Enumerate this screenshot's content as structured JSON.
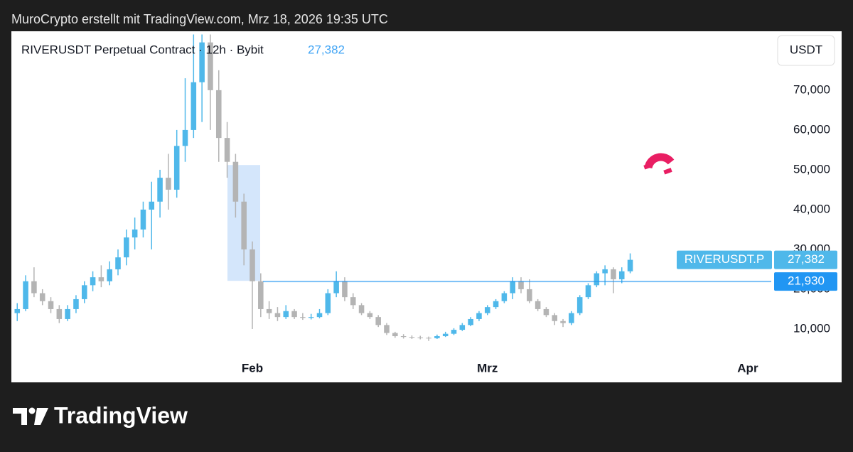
{
  "header": {
    "caption": "MuroCrypto erstellt mit TradingView.com, Mrz 18, 2026 19:35 UTC",
    "brand": "TradingView"
  },
  "chart_data": {
    "type": "candlestick",
    "title": "RIVERUSDT Perpetual Contract · 12h · Bybit",
    "currency": "USDT",
    "symbol_label": "RIVERUSDT.P",
    "last_price": {
      "value": 27382,
      "label": "27,382"
    },
    "horizontal_line": {
      "value": 21930,
      "label": "21,930",
      "color": "#2196f3"
    },
    "highlight_box": {
      "ylim": [
        22100,
        51200
      ],
      "color": "#cfe3fb"
    },
    "up_color": "#4fb8ea",
    "down_color": "#b4b4b4",
    "xlim": [
      -0.7,
      89.8
    ],
    "xticks": [
      {
        "value": 28,
        "label": "Feb"
      },
      {
        "value": 56,
        "label": "Mrz"
      },
      {
        "value": 87,
        "label": "Apr"
      }
    ],
    "ylim": [
      -3400,
      84800
    ],
    "yticks": [
      {
        "value": 10000,
        "label": "10,000"
      },
      {
        "value": 20000,
        "label": "20,000"
      },
      {
        "value": 30000,
        "label": "30,000"
      },
      {
        "value": 40000,
        "label": "40,000"
      },
      {
        "value": 50000,
        "label": "50,000"
      },
      {
        "value": 60000,
        "label": "60,000"
      },
      {
        "value": 70000,
        "label": "70,000"
      }
    ],
    "open": [
      14000,
      15000,
      22000,
      19000,
      17000,
      15000,
      12500,
      15000,
      17500,
      21000,
      23000,
      22000,
      25000,
      28000,
      33000,
      35000,
      40000,
      42000,
      48000,
      45000,
      56000,
      60000,
      72000,
      82000,
      70000,
      58000,
      52000,
      42000,
      30000,
      22000,
      15000,
      14000,
      13000,
      14500,
      13000,
      12800,
      13000,
      14000,
      19000,
      22000,
      18000,
      16000,
      14000,
      13000,
      11000,
      9000,
      8200,
      8000,
      7900,
      7800,
      7700,
      8200,
      8800,
      9800,
      11000,
      12500,
      14000,
      15500,
      17000,
      19000,
      22000,
      20000,
      17000,
      15000,
      13500,
      12000,
      11500,
      14000,
      18000,
      21000,
      24000,
      25000,
      22500,
      24500
    ],
    "high": [
      16500,
      23500,
      25500,
      20000,
      18000,
      16000,
      16000,
      18500,
      22000,
      24500,
      26000,
      27000,
      30000,
      35000,
      38000,
      42000,
      47000,
      50000,
      54000,
      60000,
      73000,
      84000,
      84000,
      84000,
      75000,
      62000,
      54000,
      44000,
      32000,
      24000,
      17000,
      15500,
      16000,
      15000,
      14000,
      13800,
      15000,
      20000,
      24500,
      23000,
      19000,
      16500,
      14500,
      13500,
      11500,
      9300,
      8700,
      8400,
      8300,
      8100,
      8600,
      9300,
      10200,
      11500,
      13000,
      14500,
      16000,
      17500,
      19500,
      23000,
      23000,
      22500,
      17500,
      15500,
      14000,
      12500,
      14500,
      18500,
      21500,
      24500,
      26000,
      25500,
      25500,
      29000
    ],
    "low": [
      12000,
      14500,
      18000,
      16000,
      14000,
      11500,
      12000,
      14000,
      16500,
      19500,
      20500,
      21000,
      23500,
      26000,
      30000,
      33000,
      30000,
      38000,
      40000,
      43000,
      52000,
      58000,
      62000,
      60000,
      52000,
      48000,
      38000,
      26000,
      10000,
      13000,
      12500,
      12000,
      12500,
      12500,
      12300,
      12400,
      12700,
      13500,
      18000,
      17000,
      15000,
      13500,
      12500,
      10500,
      8500,
      7800,
      7600,
      7500,
      7400,
      7000,
      7500,
      8000,
      8500,
      9500,
      10700,
      12000,
      13500,
      15000,
      16500,
      17500,
      19000,
      16500,
      14500,
      13000,
      11000,
      10500,
      11000,
      13500,
      17500,
      20500,
      21000,
      19000,
      21500,
      24000
    ],
    "close": [
      15000,
      22000,
      19000,
      17000,
      15000,
      12500,
      15000,
      17500,
      21000,
      23000,
      22000,
      25000,
      28000,
      33000,
      35000,
      40000,
      42000,
      48000,
      45000,
      56000,
      60000,
      72000,
      82000,
      70000,
      58000,
      52000,
      42000,
      30000,
      22000,
      15000,
      14000,
      13000,
      14500,
      13000,
      12800,
      13000,
      14000,
      19000,
      22000,
      18000,
      16000,
      14000,
      13000,
      11000,
      9000,
      8200,
      8000,
      7900,
      7800,
      7700,
      8200,
      8800,
      9800,
      11000,
      12500,
      14000,
      15500,
      17000,
      19000,
      22000,
      20000,
      17000,
      15000,
      13500,
      12000,
      11500,
      14000,
      18000,
      21000,
      24000,
      25000,
      22500,
      24500,
      27382
    ]
  }
}
